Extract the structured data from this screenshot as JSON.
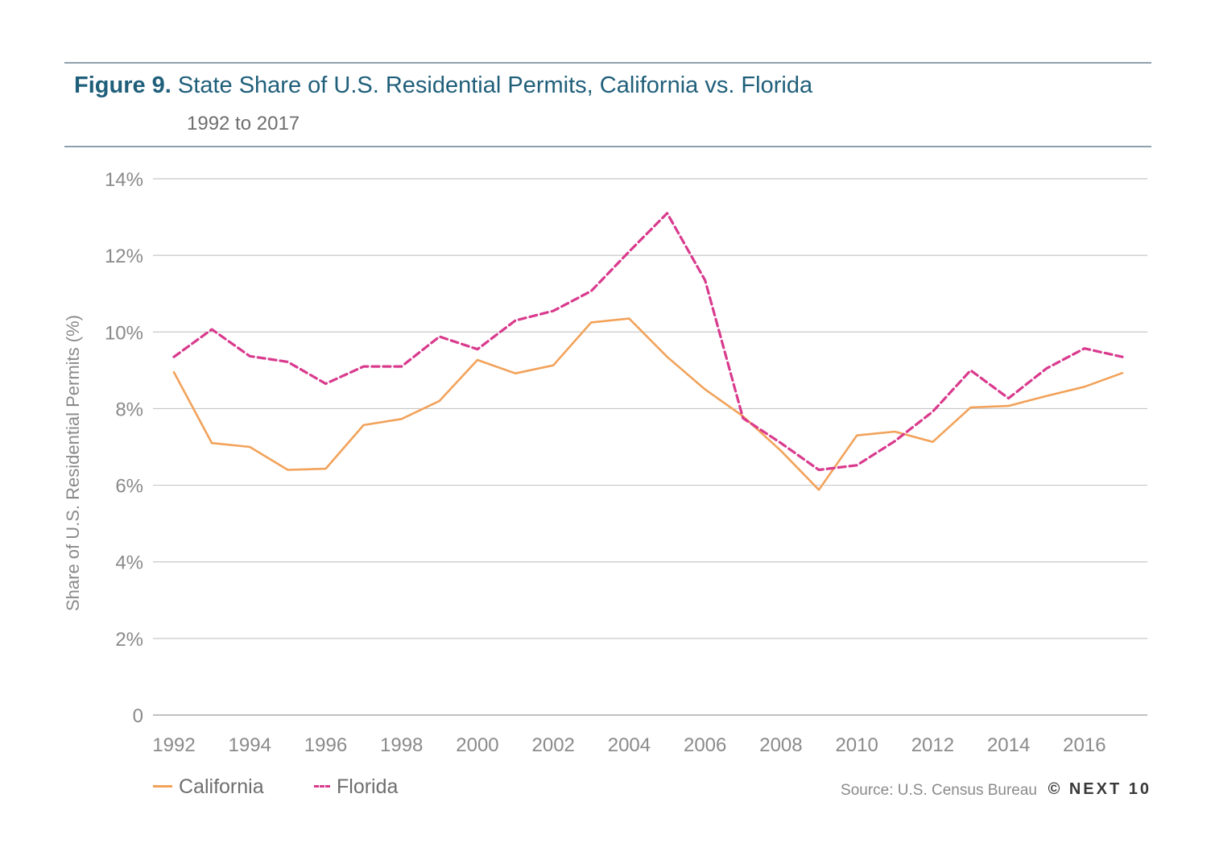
{
  "header": {
    "figure_label": "Figure 9.",
    "title": "State Share of U.S. Residential Permits, California vs. Florida",
    "subtitle": "1992 to 2017"
  },
  "footer": {
    "source": "Source: U.S. Census Bureau",
    "brand": "© NEXT 10"
  },
  "colors": {
    "california": "#f2a25a",
    "florida": "#d93a8d",
    "title": "#1f5f7a",
    "grid": "#c8c8c8"
  },
  "chart_data": {
    "type": "line",
    "title": "State Share of U.S. Residential Permits, California vs. Florida",
    "subtitle": "1992 to 2017",
    "xlabel": "",
    "ylabel": "Share of U.S. Residential Permits (%)",
    "ylim": [
      0,
      14
    ],
    "yticks": [
      0,
      2,
      4,
      6,
      8,
      10,
      12,
      14
    ],
    "ytick_labels": [
      "0",
      "2%",
      "4%",
      "6%",
      "8%",
      "10%",
      "12%",
      "14%"
    ],
    "xlim": [
      1992,
      2017
    ],
    "xticks": [
      1992,
      1994,
      1996,
      1998,
      2000,
      2002,
      2004,
      2006,
      2008,
      2010,
      2012,
      2014,
      2016
    ],
    "xtick_labels": [
      "1992",
      "1994",
      "1996",
      "1998",
      "2000",
      "2002",
      "2004",
      "2006",
      "2008",
      "2010",
      "2012",
      "2014",
      "2016"
    ],
    "grid": "horizontal",
    "legend_position": "bottom-left",
    "x": [
      1992,
      1993,
      1994,
      1995,
      1996,
      1997,
      1998,
      1999,
      2000,
      2001,
      2002,
      2003,
      2004,
      2005,
      2006,
      2007,
      2008,
      2009,
      2010,
      2011,
      2012,
      2013,
      2014,
      2015,
      2016,
      2017
    ],
    "series": [
      {
        "name": "California",
        "style": "solid",
        "values": [
          8.95,
          7.1,
          7.0,
          6.4,
          6.43,
          7.57,
          7.73,
          8.2,
          9.27,
          8.92,
          9.13,
          10.25,
          10.35,
          9.35,
          8.5,
          7.8,
          6.9,
          5.88,
          7.3,
          7.4,
          7.13,
          8.03,
          8.07,
          8.33,
          8.57,
          8.93
        ]
      },
      {
        "name": "Florida",
        "style": "dashed",
        "values": [
          9.35,
          10.07,
          9.37,
          9.22,
          8.65,
          9.1,
          9.1,
          9.88,
          9.55,
          10.3,
          10.55,
          11.07,
          12.1,
          13.1,
          11.35,
          7.75,
          7.1,
          6.4,
          6.52,
          7.15,
          7.92,
          9.0,
          8.27,
          9.05,
          9.57,
          9.35
        ]
      }
    ]
  }
}
